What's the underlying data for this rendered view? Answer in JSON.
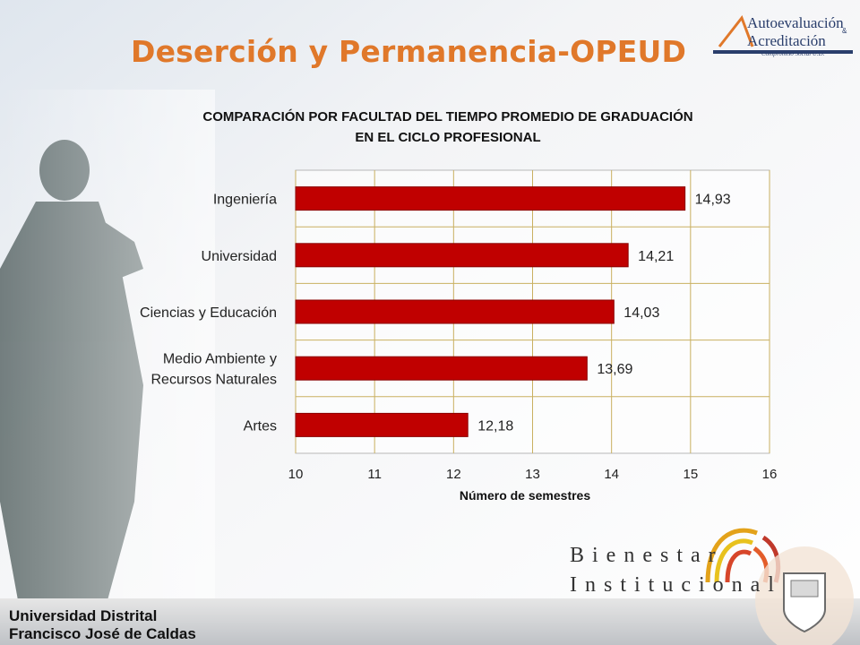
{
  "slide": {
    "title": "Deserción y Permanencia-OPEUD",
    "logo_top": {
      "line1": "Autoevaluación",
      "amp": "&",
      "line2": "Acreditación",
      "tagline": "Compromiso Social U.D."
    },
    "bienestar": {
      "line1": "Bienestar",
      "line2": "Institucional"
    },
    "footer": {
      "line1": "Universidad Distrital",
      "line2": "Francisco José de Caldas"
    }
  },
  "chart_data": {
    "type": "bar",
    "orientation": "horizontal",
    "title": "COMPARACIÓN  POR FACULTAD DEL TIEMPO PROMEDIO DE GRADUACIÓN",
    "subtitle": "EN EL CICLO PROFESIONAL",
    "xlabel": "Número de semestres",
    "ylabel": "",
    "xlim": [
      10,
      16
    ],
    "ticks": [
      "10",
      "11",
      "12",
      "13",
      "14",
      "15",
      "16"
    ],
    "categories": [
      [
        "Ingeniería"
      ],
      [
        "Universidad"
      ],
      [
        "Ciencias y Educación"
      ],
      [
        "Medio Ambiente y",
        "Recursos Naturales"
      ],
      [
        "Artes"
      ]
    ],
    "values": [
      14.93,
      14.21,
      14.03,
      13.69,
      12.18
    ],
    "value_labels": [
      "14,93",
      "14,21",
      "14,03",
      "13,69",
      "12,18"
    ],
    "bar_color": "#c00000",
    "grid": true,
    "legend": "none"
  }
}
